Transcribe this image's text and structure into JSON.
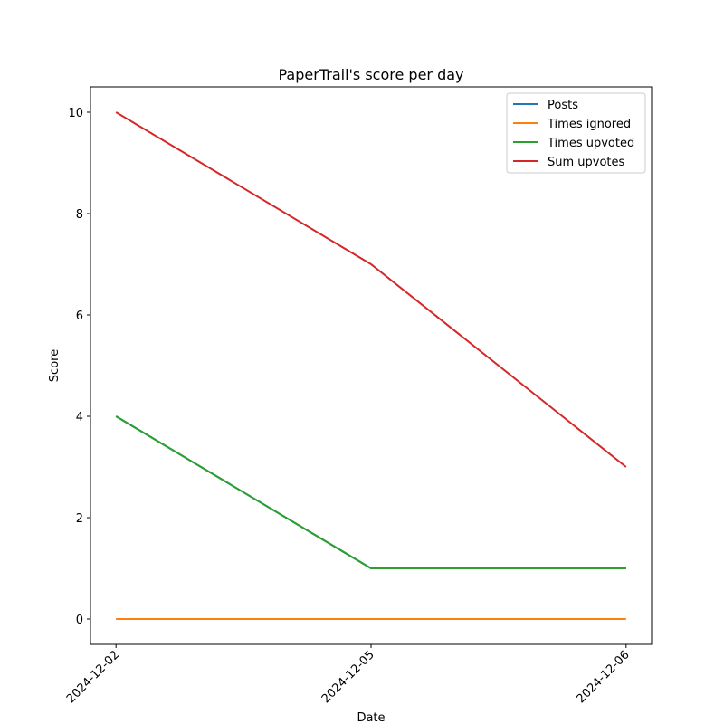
{
  "chart_data": {
    "type": "line",
    "title": "PaperTrail's score per day",
    "xlabel": "Date",
    "ylabel": "Score",
    "categories": [
      "2024-12-02",
      "2024-12-05",
      "2024-12-06"
    ],
    "series": [
      {
        "name": "Posts",
        "color": "#1f77b4",
        "values": [
          4,
          1,
          1
        ]
      },
      {
        "name": "Times ignored",
        "color": "#ff7f0e",
        "values": [
          0,
          0,
          0
        ]
      },
      {
        "name": "Times upvoted",
        "color": "#2ca02c",
        "values": [
          4,
          1,
          1
        ]
      },
      {
        "name": "Sum upvotes",
        "color": "#d62728",
        "values": [
          10,
          7,
          3
        ]
      }
    ],
    "xlim": [
      -0.1,
      2.1
    ],
    "ylim": [
      -0.5,
      10.5
    ],
    "yticks": [
      0,
      2,
      4,
      6,
      8,
      10
    ],
    "grid": false,
    "legend": "upper right"
  }
}
